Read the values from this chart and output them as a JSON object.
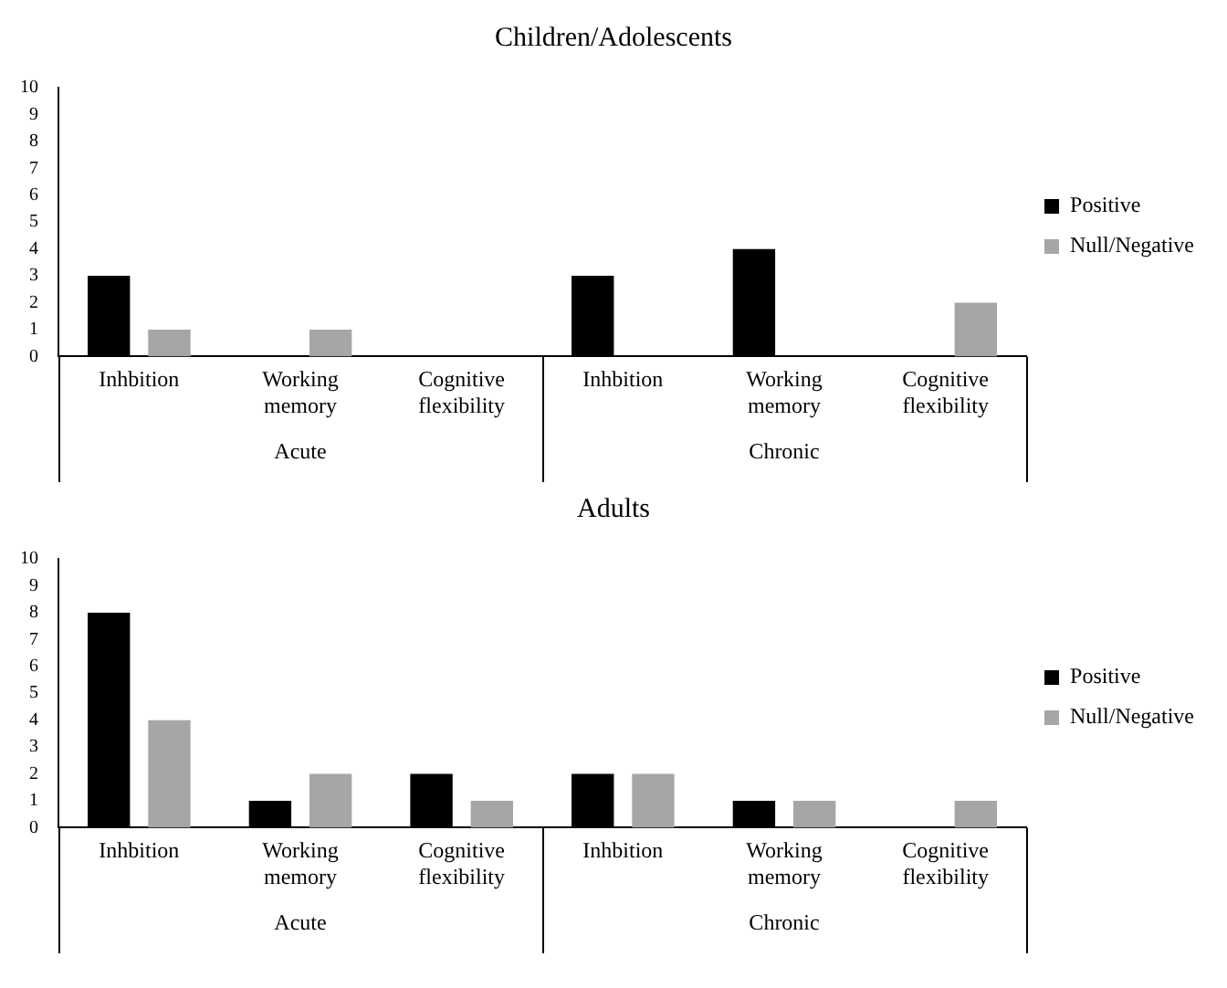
{
  "chart_data": [
    {
      "type": "bar",
      "title": "Children/Adolescents",
      "categories": [
        "Inhbition",
        "Working memory",
        "Cognitive flexibility",
        "Inhbition",
        "Working memory",
        "Cognitive flexibility"
      ],
      "series": [
        {
          "name": "Positive",
          "color": "#000000",
          "values": [
            3,
            0,
            0,
            3,
            4,
            0
          ]
        },
        {
          "name": "Null/Negative",
          "color": "#a6a6a6",
          "values": [
            1,
            1,
            0,
            0,
            0,
            2
          ]
        }
      ],
      "ylim": [
        0,
        10
      ],
      "yticks": [
        0,
        1,
        2,
        3,
        4,
        5,
        6,
        7,
        8,
        9,
        10
      ],
      "grid": false,
      "legend": "right",
      "annotations": [
        "Acute",
        "Chronic"
      ]
    },
    {
      "type": "bar",
      "title": "Adults",
      "categories": [
        "Inhbition",
        "Working memory",
        "Cognitive flexibility",
        "Inhbition",
        "Working memory",
        "Cognitive flexibility"
      ],
      "series": [
        {
          "name": "Positive",
          "color": "#000000",
          "values": [
            8,
            1,
            2,
            2,
            1,
            0
          ]
        },
        {
          "name": "Null/Negative",
          "color": "#a6a6a6",
          "values": [
            4,
            2,
            1,
            2,
            1,
            1
          ]
        }
      ],
      "ylim": [
        0,
        10
      ],
      "yticks": [
        0,
        1,
        2,
        3,
        4,
        5,
        6,
        7,
        8,
        9,
        10
      ],
      "grid": false,
      "legend": "right",
      "annotations": [
        "Acute",
        "Chronic"
      ]
    }
  ]
}
